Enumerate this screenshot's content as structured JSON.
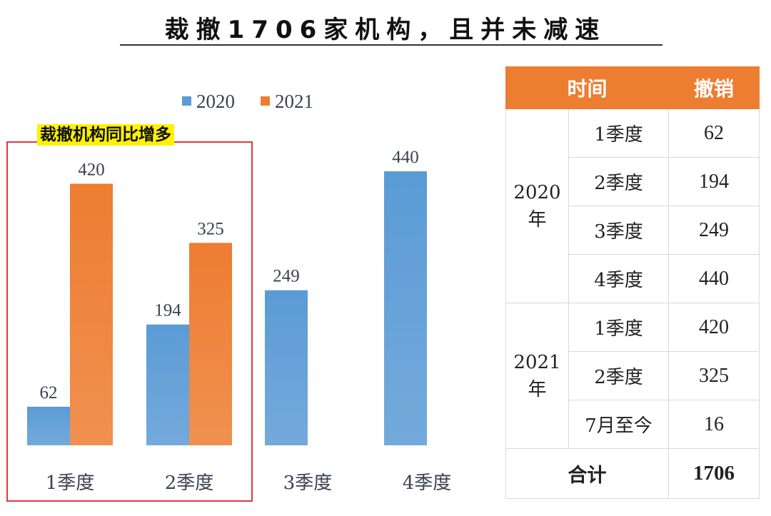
{
  "title": "裁撤1706家机构，且并未减速",
  "highlight_note": "裁撤机构同比增多",
  "colors": {
    "series_2020": "#5b9bd5",
    "series_2021": "#ed7d31",
    "table_header": "#ed7d31",
    "highlight_border": "#e0383e"
  },
  "chart_data": {
    "type": "bar",
    "title": "",
    "categories": [
      "1季度",
      "2季度",
      "3季度",
      "4季度"
    ],
    "series": [
      {
        "name": "2020",
        "values": [
          62,
          194,
          249,
          440
        ]
      },
      {
        "name": "2021",
        "values": [
          420,
          325,
          null,
          null
        ]
      }
    ],
    "ylim": [
      0,
      500
    ],
    "grid": false,
    "legend": "top"
  },
  "table": {
    "headers": [
      "时间",
      "撤销"
    ],
    "groups": [
      {
        "year": "2020",
        "year_suffix": "年",
        "rows": [
          {
            "period": "1季度",
            "value": "62"
          },
          {
            "period": "2季度",
            "value": "194"
          },
          {
            "period": "3季度",
            "value": "249"
          },
          {
            "period": "4季度",
            "value": "440"
          }
        ]
      },
      {
        "year": "2021",
        "year_suffix": "年",
        "rows": [
          {
            "period": "1季度",
            "value": "420"
          },
          {
            "period": "2季度",
            "value": "325"
          },
          {
            "period": "7月至今",
            "value": "16"
          }
        ]
      }
    ],
    "total_label": "合计",
    "total_value": "1706"
  }
}
